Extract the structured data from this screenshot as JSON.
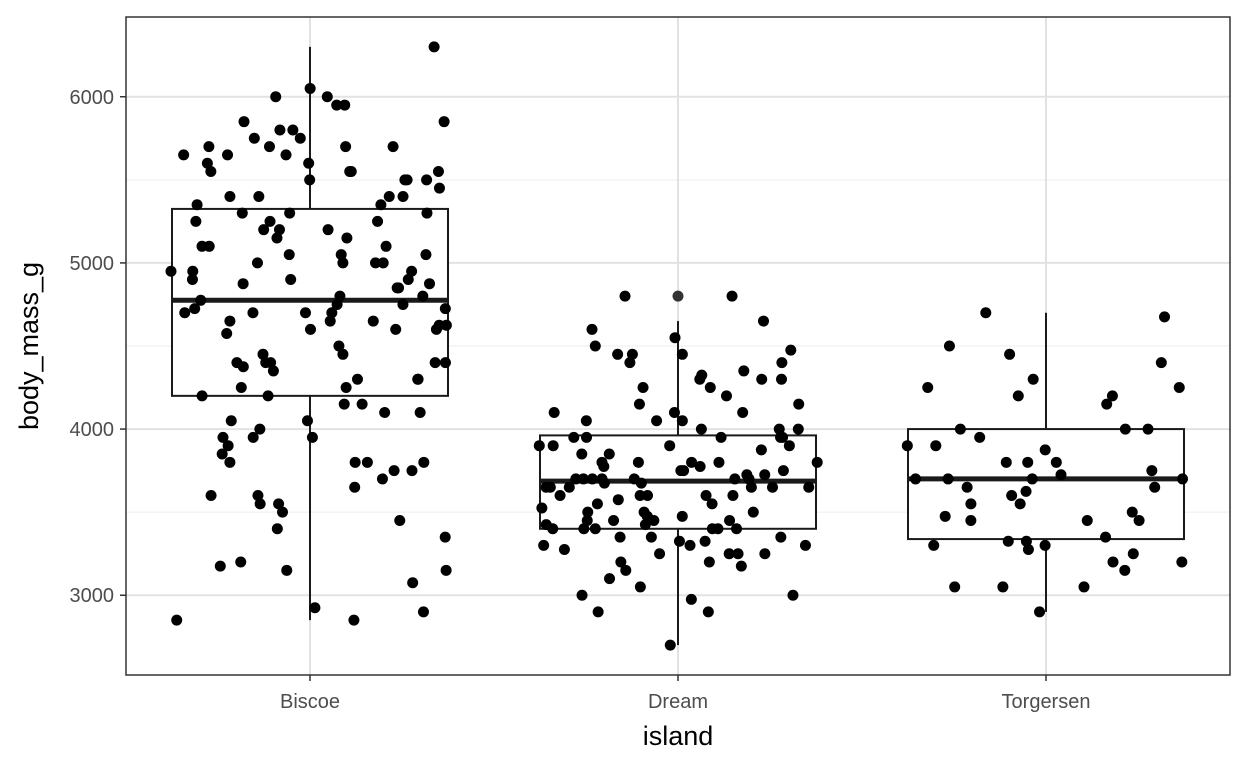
{
  "chart_data": {
    "type": "boxplot",
    "xlabel": "island",
    "ylabel": "body_mass_g",
    "categories": [
      "Biscoe",
      "Dream",
      "Torgersen"
    ],
    "ylim": [
      2520,
      6480
    ],
    "yticks": [
      3000,
      4000,
      5000,
      6000
    ],
    "y_minor_ticks": [
      2500,
      3500,
      4500,
      5500,
      6500
    ],
    "grid": true,
    "jitter_width": 0.38,
    "boxes": [
      {
        "category": "Biscoe",
        "whisker_low": 2850,
        "q1": 4200,
        "median": 4775,
        "q3": 5325,
        "whisker_high": 6300,
        "outliers": []
      },
      {
        "category": "Dream",
        "whisker_low": 2700,
        "q1": 3400,
        "median": 3687,
        "q3": 3962,
        "whisker_high": 4650,
        "outliers": [
          4800
        ]
      },
      {
        "category": "Torgersen",
        "whisker_low": 2900,
        "q1": 3338,
        "median": 3700,
        "q3": 4000,
        "whisker_high": 4700,
        "outliers": []
      }
    ],
    "points": [
      {
        "category": "Biscoe",
        "values": [
          6300,
          6050,
          6000,
          6000,
          5950,
          5950,
          5850,
          5850,
          5800,
          5800,
          5750,
          5750,
          5700,
          5700,
          5700,
          5700,
          5650,
          5650,
          5650,
          5600,
          5600,
          5550,
          5550,
          5550,
          5550,
          5500,
          5500,
          5500,
          5500,
          5450,
          5400,
          5400,
          5400,
          5400,
          5350,
          5350,
          5300,
          5300,
          5300,
          5250,
          5250,
          5250,
          5200,
          5200,
          5200,
          5150,
          5150,
          5100,
          5100,
          5100,
          5050,
          5050,
          5050,
          5000,
          5000,
          5000,
          5000,
          4950,
          4950,
          4950,
          4900,
          4900,
          4900,
          4875,
          4875,
          4850,
          4850,
          4800,
          4800,
          4775,
          4750,
          4750,
          4725,
          4725,
          4700,
          4700,
          4700,
          4700,
          4650,
          4650,
          4650,
          4625,
          4625,
          4600,
          4600,
          4600,
          4575,
          4500,
          4450,
          4450,
          4400,
          4400,
          4400,
          4400,
          4400,
          4375,
          4350,
          4300,
          4300,
          4300,
          4250,
          4250,
          4200,
          4200,
          4150,
          4150,
          4100,
          4100,
          4050,
          4050,
          4000,
          3950,
          3950,
          3950,
          3900,
          3850,
          3800,
          3800,
          3800,
          3800,
          3750,
          3750,
          3700,
          3650,
          3600,
          3600,
          3550,
          3550,
          3500,
          3450,
          3400,
          3350,
          3200,
          3175,
          3150,
          3150,
          3075,
          2925,
          2900,
          2850,
          2850
        ]
      },
      {
        "category": "Dream",
        "values": [
          4800,
          4800,
          4650,
          4600,
          4550,
          4500,
          4475,
          4450,
          4450,
          4450,
          4400,
          4400,
          4350,
          4325,
          4300,
          4300,
          4300,
          4250,
          4250,
          4200,
          4150,
          4150,
          4100,
          4100,
          4100,
          4050,
          4050,
          4050,
          4000,
          4000,
          4000,
          3950,
          3950,
          3950,
          3950,
          3950,
          3900,
          3900,
          3900,
          3900,
          3875,
          3850,
          3850,
          3800,
          3800,
          3800,
          3800,
          3800,
          3775,
          3775,
          3750,
          3750,
          3750,
          3725,
          3725,
          3700,
          3700,
          3700,
          3700,
          3700,
          3700,
          3700,
          3675,
          3675,
          3650,
          3650,
          3650,
          3650,
          3650,
          3650,
          3600,
          3600,
          3600,
          3600,
          3600,
          3575,
          3550,
          3550,
          3525,
          3500,
          3500,
          3500,
          3475,
          3475,
          3450,
          3450,
          3450,
          3450,
          3425,
          3425,
          3400,
          3400,
          3400,
          3400,
          3400,
          3400,
          3350,
          3350,
          3350,
          3325,
          3325,
          3300,
          3300,
          3300,
          3275,
          3250,
          3250,
          3250,
          3250,
          3200,
          3200,
          3175,
          3150,
          3100,
          3050,
          3000,
          3000,
          2975,
          2900,
          2900,
          2700
        ]
      },
      {
        "category": "Torgersen",
        "values": [
          4700,
          4675,
          4500,
          4450,
          4400,
          4300,
          4250,
          4250,
          4200,
          4200,
          4150,
          4000,
          4000,
          4000,
          3950,
          3900,
          3900,
          3875,
          3800,
          3800,
          3800,
          3750,
          3725,
          3700,
          3700,
          3700,
          3700,
          3650,
          3650,
          3625,
          3600,
          3550,
          3550,
          3500,
          3475,
          3450,
          3450,
          3450,
          3350,
          3325,
          3325,
          3300,
          3300,
          3275,
          3250,
          3200,
          3200,
          3150,
          3050,
          3050,
          3050,
          2900
        ]
      }
    ]
  }
}
